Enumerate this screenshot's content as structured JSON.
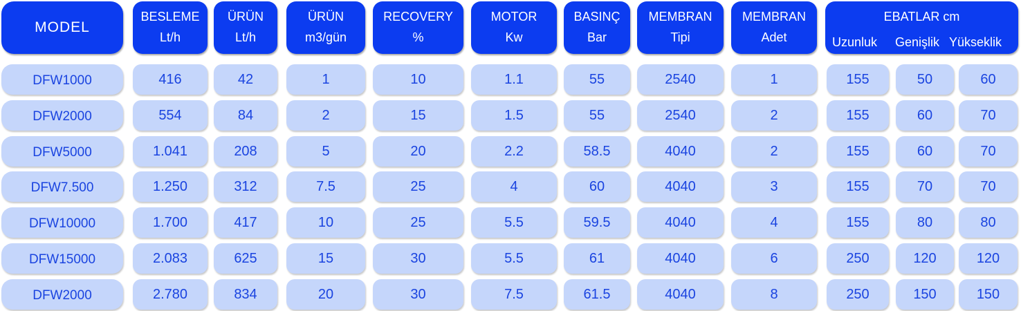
{
  "headers": [
    {
      "key": "model",
      "lines": [
        "MODEL"
      ]
    },
    {
      "key": "besleme",
      "lines": [
        "BESLEME",
        "Lt/h"
      ]
    },
    {
      "key": "urun_lt",
      "lines": [
        "ÜRÜN",
        "Lt/h"
      ]
    },
    {
      "key": "urun_m3",
      "lines": [
        "ÜRÜN",
        "m3/gün"
      ]
    },
    {
      "key": "recovery",
      "lines": [
        "RECOVERY",
        "%"
      ]
    },
    {
      "key": "motor",
      "lines": [
        "MOTOR",
        "Kw"
      ]
    },
    {
      "key": "basinc",
      "lines": [
        "BASINÇ",
        "Bar"
      ]
    },
    {
      "key": "membran_tipi",
      "lines": [
        "MEMBRAN",
        "Tipi"
      ]
    },
    {
      "key": "membran_adet",
      "lines": [
        "MEMBRAN",
        "Adet"
      ]
    }
  ],
  "ebatlar": {
    "title": "EBATLAR cm",
    "sub": [
      "Uzunluk",
      "Genişlik",
      "Yükseklik"
    ]
  },
  "rows": [
    [
      "DFW1000",
      "416",
      "42",
      "1",
      "10",
      "1.1",
      "55",
      "2540",
      "1",
      "155",
      "50",
      "60"
    ],
    [
      "DFW2000",
      "554",
      "84",
      "2",
      "15",
      "1.5",
      "55",
      "2540",
      "2",
      "155",
      "60",
      "70"
    ],
    [
      "DFW5000",
      "1.041",
      "208",
      "5",
      "20",
      "2.2",
      "58.5",
      "4040",
      "2",
      "155",
      "60",
      "70"
    ],
    [
      "DFW7.500",
      "1.250",
      "312",
      "7.5",
      "25",
      "4",
      "60",
      "4040",
      "3",
      "155",
      "70",
      "70"
    ],
    [
      "DFW10000",
      "1.700",
      "417",
      "10",
      "25",
      "5.5",
      "59.5",
      "4040",
      "4",
      "155",
      "80",
      "80"
    ],
    [
      "DFW15000",
      "2.083",
      "625",
      "15",
      "30",
      "5.5",
      "61",
      "4040",
      "6",
      "250",
      "120",
      "120"
    ],
    [
      "DFW2000",
      "2.780",
      "834",
      "20",
      "30",
      "7.5",
      "61.5",
      "4040",
      "8",
      "250",
      "150",
      "150"
    ]
  ]
}
